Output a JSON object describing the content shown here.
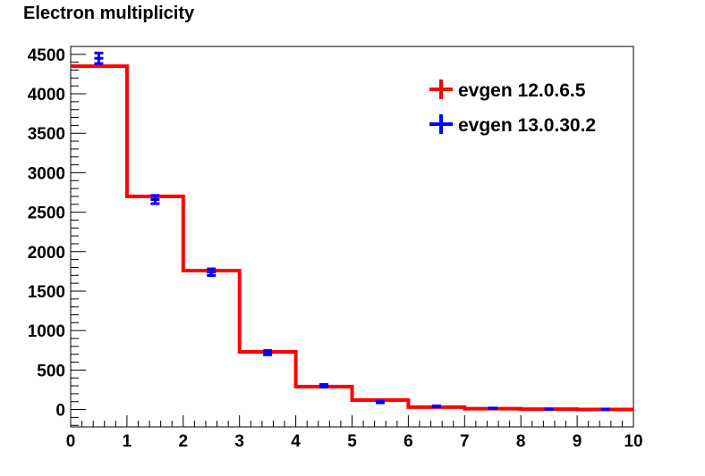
{
  "chart_data": {
    "type": "histogram",
    "title": "Electron multiplicity",
    "xlabel": "",
    "ylabel": "",
    "xlim": [
      0,
      10
    ],
    "ylim": [
      -220,
      4600
    ],
    "x_ticks": [
      "0",
      "1",
      "2",
      "3",
      "4",
      "5",
      "6",
      "7",
      "8",
      "9",
      "10"
    ],
    "y_ticks": [
      "0",
      "500",
      "1000",
      "1500",
      "2000",
      "2500",
      "3000",
      "3500",
      "4000",
      "4500"
    ],
    "bin_edges": [
      0,
      1,
      2,
      3,
      4,
      5,
      6,
      7,
      8,
      9,
      10
    ],
    "series": [
      {
        "name": "evgen 12.0.6.5",
        "style": "step",
        "color": "#ff0000",
        "values": [
          4350,
          2700,
          1760,
          730,
          290,
          120,
          30,
          10,
          5,
          0
        ]
      },
      {
        "name": "evgen 13.0.30.2",
        "style": "points-errors",
        "color": "#0000ff",
        "values": [
          4450,
          2660,
          1740,
          720,
          300,
          95,
          40,
          15,
          5,
          5
        ],
        "errors": [
          67,
          52,
          42,
          27,
          17,
          10,
          6,
          4,
          2,
          2
        ]
      }
    ],
    "legend_position": "top-right",
    "grid": false
  }
}
